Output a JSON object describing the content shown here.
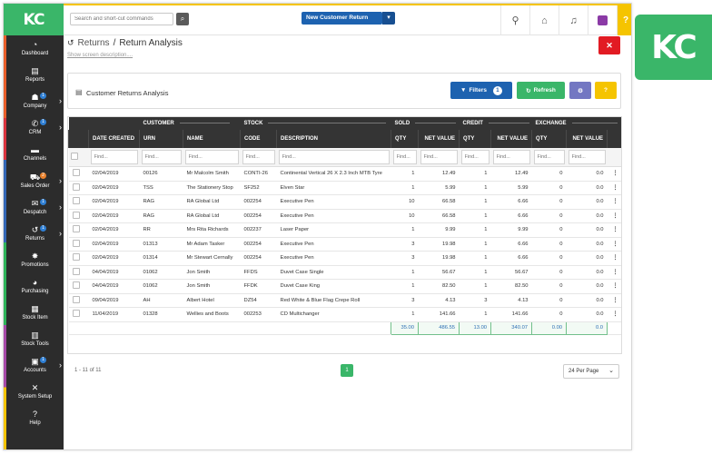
{
  "app": {
    "logo": "KC",
    "brand_color": "#3ab669"
  },
  "topbar": {
    "search_placeholder": "Search and short-cut commands",
    "new_button_label": "New Customer Return",
    "help_label": "?"
  },
  "sidebar": {
    "items": [
      {
        "label": "Dashboard",
        "icon": "dashboard-icon",
        "glyph": "◔"
      },
      {
        "label": "Reports",
        "icon": "reports-icon",
        "glyph": "▤"
      },
      {
        "label": "Company",
        "icon": "company-icon",
        "glyph": "☗",
        "badge": "1",
        "chevron": true
      },
      {
        "label": "CRM",
        "icon": "phone-icon",
        "glyph": "✆",
        "badge": "1",
        "chevron": true
      },
      {
        "label": "Channels",
        "icon": "channels-icon",
        "glyph": "▬"
      },
      {
        "label": "Sales Order",
        "icon": "cart-icon",
        "glyph": "⛟",
        "badge": "2",
        "badge_color": "orange",
        "chevron": true
      },
      {
        "label": "Despatch",
        "icon": "despatch-icon",
        "glyph": "✉",
        "badge": "1",
        "chevron": true
      },
      {
        "label": "Returns",
        "icon": "returns-icon",
        "glyph": "↺",
        "badge": "1",
        "chevron": true
      },
      {
        "label": "Promotions",
        "icon": "megaphone-icon",
        "glyph": "✸"
      },
      {
        "label": "Purchasing",
        "icon": "purchasing-icon",
        "glyph": "◕"
      },
      {
        "label": "Stock Item",
        "icon": "stock-item-icon",
        "glyph": "▦"
      },
      {
        "label": "Stock Tools",
        "icon": "stock-tools-icon",
        "glyph": "▥"
      },
      {
        "label": "Accounts",
        "icon": "accounts-icon",
        "glyph": "▣",
        "badge": "1",
        "chevron": true
      },
      {
        "label": "System Setup",
        "icon": "wrench-icon",
        "glyph": "✕"
      },
      {
        "label": "Help",
        "icon": "help-icon",
        "glyph": "?"
      }
    ]
  },
  "page": {
    "breadcrumb_parent": "Returns",
    "breadcrumb_sep": "/",
    "title": "Return Analysis",
    "screen_description_link": "Show screen description...."
  },
  "report": {
    "title": "Customer Returns Analysis",
    "filters_label": "Filters",
    "filters_count": "1",
    "refresh_label": "Refresh",
    "help_label": "?"
  },
  "table": {
    "groups": {
      "customer": "CUSTOMER",
      "stock": "STOCK",
      "sold": "SOLD",
      "credit": "CREDIT",
      "exchange": "EXCHANGE"
    },
    "columns": [
      "DATE CREATED",
      "URN",
      "NAME",
      "CODE",
      "DESCRIPTION",
      "QTY",
      "NET VALUE",
      "QTY",
      "NET VALUE",
      "QTY",
      "NET VALUE"
    ],
    "find_placeholder": "Find...",
    "rows": [
      [
        "02/04/2019",
        "00126",
        "Mr Malcolm Smith",
        "CONTI-26",
        "Continental Vertical 26 X 2.3 Inch MTB Tyre",
        "1",
        "12.49",
        "1",
        "12.49",
        "0",
        "0.0"
      ],
      [
        "02/04/2019",
        "TSS",
        "The Stationery Stop",
        "SF252",
        "Elven Star",
        "1",
        "5.99",
        "1",
        "5.99",
        "0",
        "0.0"
      ],
      [
        "02/04/2019",
        "RAG",
        "RA Global Ltd",
        "002254",
        "Executive Pen",
        "10",
        "66.58",
        "1",
        "6.66",
        "0",
        "0.0"
      ],
      [
        "02/04/2019",
        "RAG",
        "RA Global Ltd",
        "002254",
        "Executive Pen",
        "10",
        "66.58",
        "1",
        "6.66",
        "0",
        "0.0"
      ],
      [
        "02/04/2019",
        "RR",
        "Mrs Rita Richards",
        "002237",
        "Laser Paper",
        "1",
        "9.99",
        "1",
        "9.99",
        "0",
        "0.0"
      ],
      [
        "02/04/2019",
        "01313",
        "Mr Adam Tasker",
        "002254",
        "Executive Pen",
        "3",
        "19.98",
        "1",
        "6.66",
        "0",
        "0.0"
      ],
      [
        "02/04/2019",
        "01314",
        "Mr Stewart Cernally",
        "002254",
        "Executive Pen",
        "3",
        "19.98",
        "1",
        "6.66",
        "0",
        "0.0"
      ],
      [
        "04/04/2019",
        "01062",
        "Jon Smith",
        "FFDS",
        "Duvet Case Single",
        "1",
        "56.67",
        "1",
        "56.67",
        "0",
        "0.0"
      ],
      [
        "04/04/2019",
        "01062",
        "Jon Smith",
        "FFDK",
        "Duvet Case King",
        "1",
        "82.50",
        "1",
        "82.50",
        "0",
        "0.0"
      ],
      [
        "09/04/2019",
        "AH",
        "Albert Hotel",
        "DZ54",
        "Red White & Blue Flag Crepe Roll",
        "3",
        "4.13",
        "3",
        "4.13",
        "0",
        "0.0"
      ],
      [
        "11/04/2019",
        "01328",
        "Wellies and Boots",
        "002253",
        "CD Multichanger",
        "1",
        "141.66",
        "1",
        "141.66",
        "0",
        "0.0"
      ]
    ],
    "totals": [
      "35.00",
      "486.55",
      "13.00",
      "340.07",
      "0.00",
      "0.0"
    ]
  },
  "pager": {
    "range_text": "1 - 11 of 11",
    "current_page": "1",
    "per_page": "24 Per Page"
  }
}
